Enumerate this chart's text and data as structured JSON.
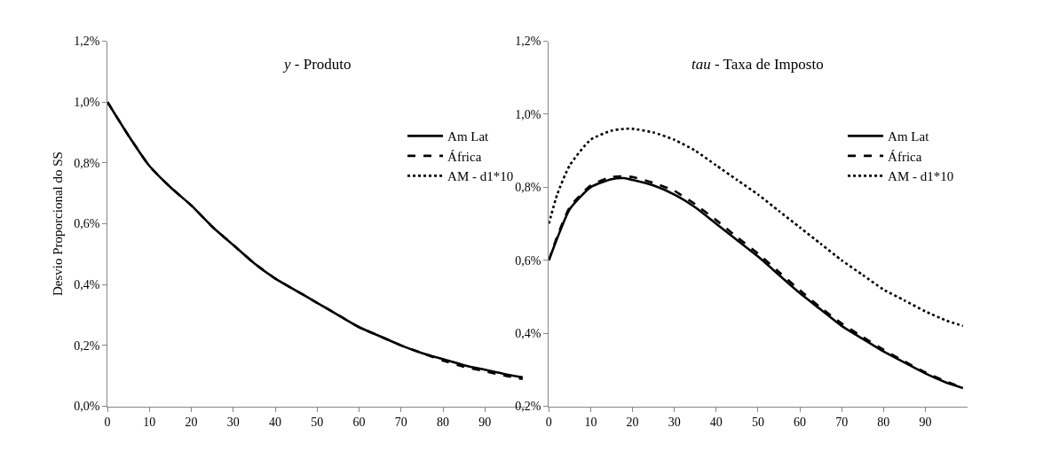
{
  "chart_data": [
    {
      "type": "line",
      "title": "y - Produto",
      "ylabel": "Desvio Proporcional do SS",
      "x": [
        0,
        5,
        10,
        15,
        20,
        25,
        30,
        35,
        40,
        45,
        50,
        55,
        60,
        65,
        70,
        75,
        80,
        85,
        90,
        95,
        99
      ],
      "series": [
        {
          "name": "Am Lat",
          "color": "#000000",
          "line_style": "solid",
          "values": [
            1.0,
            0.89,
            0.79,
            0.72,
            0.66,
            0.59,
            0.53,
            0.47,
            0.42,
            0.38,
            0.34,
            0.3,
            0.26,
            0.23,
            0.2,
            0.175,
            0.155,
            0.135,
            0.12,
            0.105,
            0.095
          ]
        },
        {
          "name": "África",
          "color": "#000000",
          "line_style": "dashed",
          "values": [
            1.0,
            0.89,
            0.79,
            0.72,
            0.66,
            0.59,
            0.53,
            0.47,
            0.42,
            0.38,
            0.34,
            0.3,
            0.26,
            0.23,
            0.2,
            0.175,
            0.15,
            0.13,
            0.115,
            0.1,
            0.09
          ]
        },
        {
          "name": "AM - d1*10",
          "color": "#000000",
          "line_style": "dotted",
          "values": [
            null,
            null,
            null,
            null,
            null,
            null,
            null,
            null,
            null,
            null,
            null,
            null,
            null,
            null,
            null,
            null,
            null,
            null,
            null,
            null,
            null
          ]
        }
      ],
      "xlim": [
        0,
        100
      ],
      "xticks": [
        0,
        10,
        20,
        30,
        40,
        50,
        60,
        70,
        80,
        90
      ],
      "ylim": [
        0,
        1.2
      ],
      "yticks": [
        {
          "value": 0,
          "label": "0,0%"
        },
        {
          "value": 0.2,
          "label": "0,2%"
        },
        {
          "value": 0.4,
          "label": "0,4%"
        },
        {
          "value": 0.6,
          "label": "0,6%"
        },
        {
          "value": 0.8,
          "label": "0,8%"
        },
        {
          "value": 1.0,
          "label": "1,0%"
        },
        {
          "value": 1.2,
          "label": "1,2%"
        }
      ],
      "grid": false,
      "legend": "right"
    },
    {
      "type": "line",
      "title": "tau - Taxa de Imposto",
      "x": [
        0,
        2,
        5,
        10,
        15,
        18,
        20,
        25,
        30,
        35,
        40,
        45,
        50,
        55,
        60,
        65,
        70,
        75,
        80,
        85,
        90,
        95,
        99
      ],
      "series": [
        {
          "name": "Am Lat",
          "color": "#000000",
          "line_style": "solid",
          "values": [
            0.6,
            0.66,
            0.74,
            0.8,
            0.822,
            0.825,
            0.82,
            0.805,
            0.78,
            0.745,
            0.7,
            0.655,
            0.61,
            0.56,
            0.51,
            0.465,
            0.42,
            0.385,
            0.35,
            0.32,
            0.29,
            0.265,
            0.25
          ]
        },
        {
          "name": "África",
          "color": "#000000",
          "line_style": "dashed",
          "values": [
            0.6,
            0.665,
            0.745,
            0.805,
            0.828,
            0.83,
            0.828,
            0.812,
            0.79,
            0.753,
            0.71,
            0.663,
            0.618,
            0.568,
            0.518,
            0.47,
            0.427,
            0.39,
            0.355,
            0.323,
            0.293,
            0.268,
            0.25
          ]
        },
        {
          "name": "AM - d1*10",
          "color": "#000000",
          "line_style": "dotted",
          "values": [
            0.7,
            0.78,
            0.86,
            0.93,
            0.955,
            0.96,
            0.96,
            0.95,
            0.93,
            0.9,
            0.86,
            0.82,
            0.78,
            0.735,
            0.69,
            0.645,
            0.6,
            0.56,
            0.52,
            0.49,
            0.46,
            0.435,
            0.42
          ]
        }
      ],
      "xlim": [
        0,
        100
      ],
      "xticks": [
        0,
        10,
        20,
        30,
        40,
        50,
        60,
        70,
        80,
        90
      ],
      "ylim": [
        0.2,
        1.2
      ],
      "yticks": [
        {
          "value": 0.2,
          "label": "0,2%"
        },
        {
          "value": 0.4,
          "label": "0,4%"
        },
        {
          "value": 0.6,
          "label": "0,6%"
        },
        {
          "value": 0.8,
          "label": "0,8%"
        },
        {
          "value": 1.0,
          "label": "1,0%"
        },
        {
          "value": 1.2,
          "label": "1,2%"
        }
      ],
      "grid": false,
      "legend": "right"
    }
  ]
}
